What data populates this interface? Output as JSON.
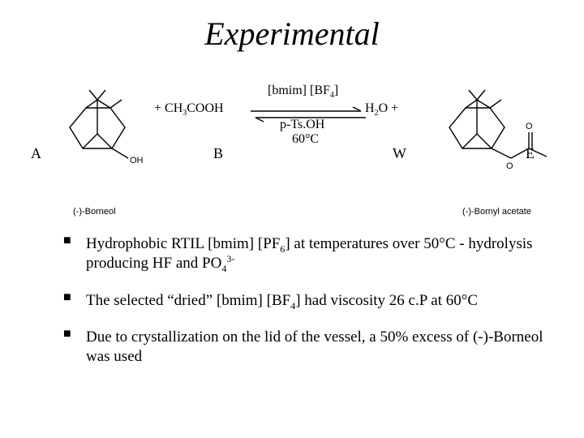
{
  "title": "Experimental",
  "scheme": {
    "labels": {
      "A": "A",
      "B": "B",
      "W": "W",
      "E": "E"
    },
    "plus_reagent": "+  CH",
    "plus_reagent_sub": "3",
    "plus_reagent_tail": "COOH",
    "catalyst_head": "[bmim] [BF",
    "catalyst_sub": "4",
    "catalyst_tail": "]",
    "ptsoh": "p-Ts.OH",
    "temp": "60°C",
    "h2o_head": "H",
    "h2o_sub": "2",
    "h2o_tail": "O  +",
    "caption_A": "(-)-Borneol",
    "caption_E": "(-)-Bornyl acetate",
    "colors": {
      "line": "#000000",
      "bg": "#ffffff"
    },
    "arrow": {
      "len": 140,
      "gap": 6
    }
  },
  "bullets": [
    {
      "parts": [
        {
          "t": "Hydrophobic RTIL [bmim] [PF"
        },
        {
          "t": "6",
          "cls": "sub"
        },
        {
          "t": "] at temperatures over 50°C - hydrolysis producing HF and PO"
        },
        {
          "t": "4",
          "cls": "sub"
        },
        {
          "t": "3-",
          "cls": "sup"
        }
      ]
    },
    {
      "parts": [
        {
          "t": "The selected “dried” [bmim] [BF"
        },
        {
          "t": "4",
          "cls": "sub"
        },
        {
          "t": "] had viscosity  26 c.P at 60°C"
        }
      ]
    },
    {
      "parts": [
        {
          "t": "Due to crystallization on the lid of the vessel, a 50% excess of (-)-Borneol was used"
        }
      ]
    }
  ]
}
